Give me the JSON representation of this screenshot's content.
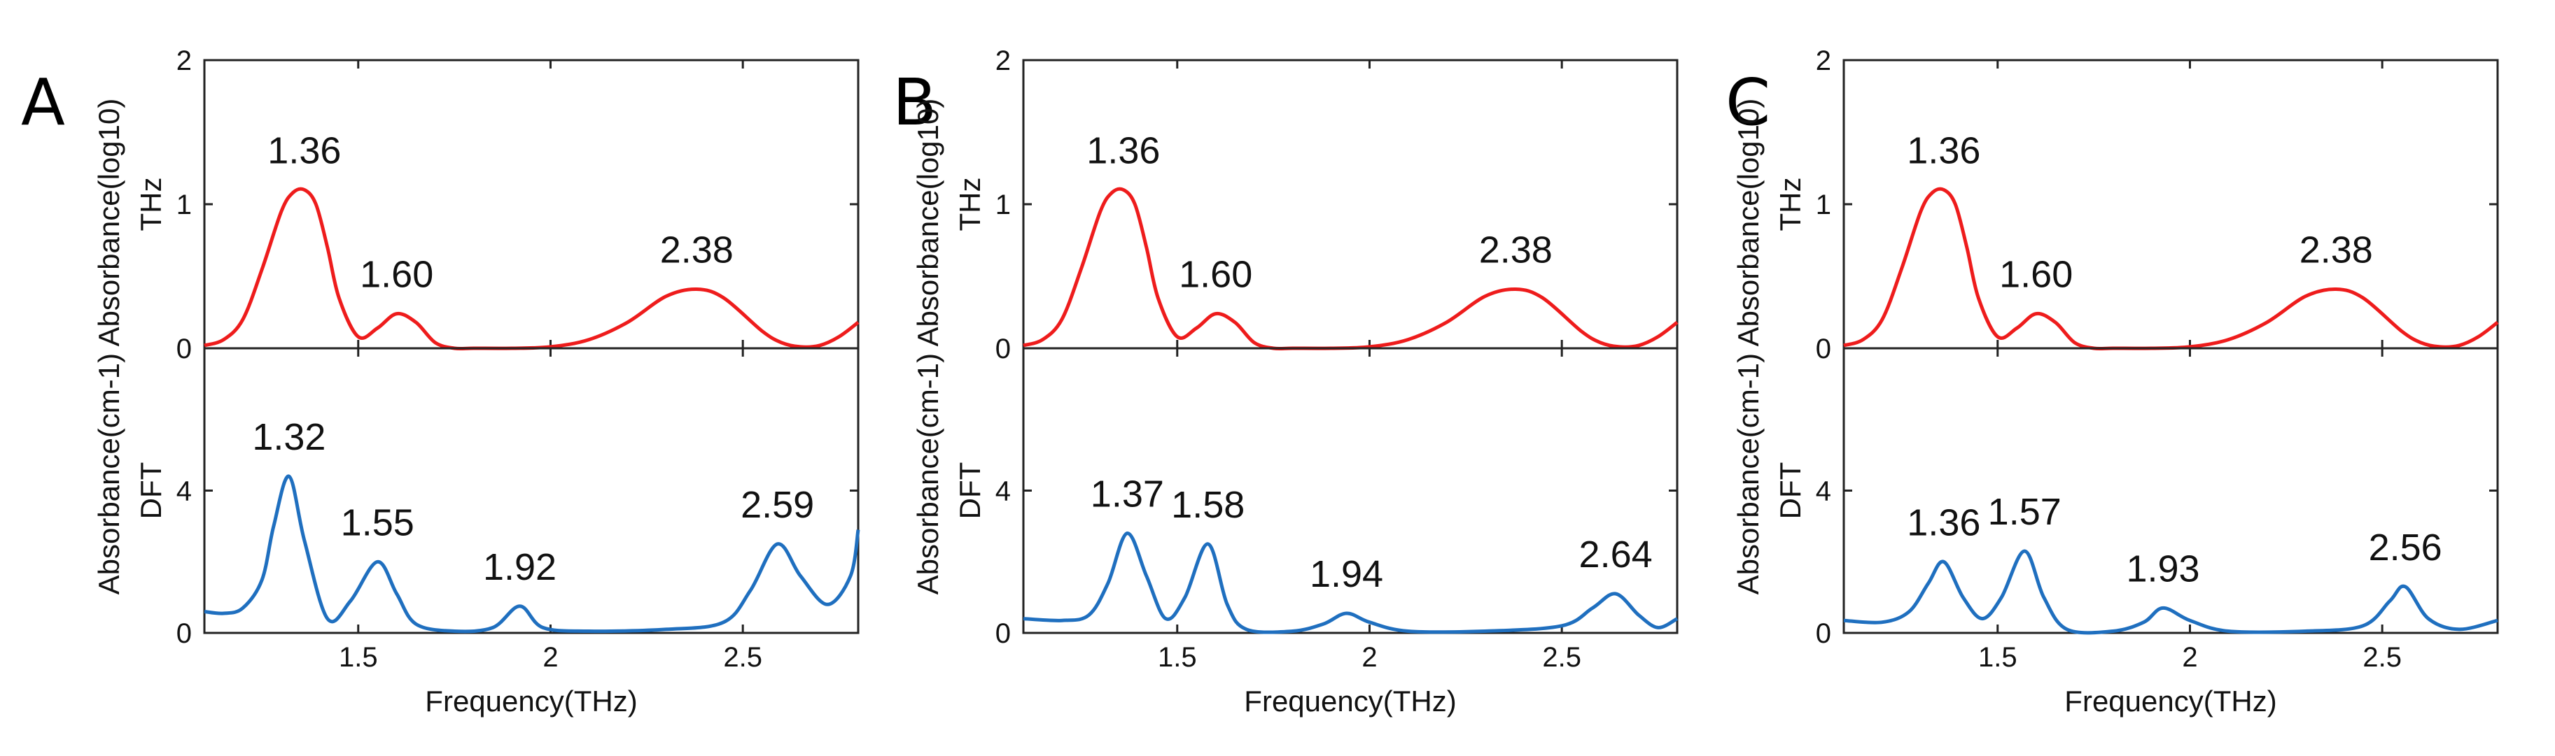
{
  "chart_data": [
    {
      "type": "line",
      "panel": "A",
      "xlabel": "Frequency(THz)",
      "xlim": [
        1.1,
        2.8
      ],
      "xticks": [
        1.5,
        2,
        2.5
      ],
      "subplots": [
        {
          "name": "THz",
          "ylabel": "THz",
          "ylabel2": "Absorbance(log10)",
          "ylim": [
            0,
            2
          ],
          "yticks": [
            0,
            1,
            2
          ],
          "color": "#ee1c1c",
          "peaks_label_values": [
            1.36,
            1.6,
            2.38
          ],
          "labels": [
            "1.36",
            "1.60",
            "2.38"
          ],
          "x": [
            1.1,
            1.15,
            1.2,
            1.25,
            1.3,
            1.33,
            1.36,
            1.39,
            1.42,
            1.45,
            1.5,
            1.55,
            1.6,
            1.65,
            1.7,
            1.75,
            1.8,
            1.9,
            2.0,
            2.1,
            2.2,
            2.3,
            2.38,
            2.45,
            2.55,
            2.6,
            2.65,
            2.7,
            2.75,
            2.8
          ],
          "y": [
            0.02,
            0.06,
            0.2,
            0.55,
            0.95,
            1.08,
            1.1,
            1.0,
            0.7,
            0.35,
            0.08,
            0.14,
            0.24,
            0.18,
            0.04,
            0.0,
            0.0,
            0.0,
            0.01,
            0.06,
            0.18,
            0.36,
            0.41,
            0.35,
            0.12,
            0.04,
            0.01,
            0.02,
            0.08,
            0.18
          ]
        },
        {
          "name": "DFT",
          "ylabel": "DFT",
          "ylabel2": "Absorbance(cm-1)",
          "ylim": [
            0,
            8
          ],
          "yticks": [
            0,
            4
          ],
          "color": "#1f6fbf",
          "labels": [
            "1.32",
            "1.55",
            "1.92",
            "2.59"
          ],
          "x": [
            1.1,
            1.15,
            1.2,
            1.25,
            1.28,
            1.32,
            1.36,
            1.42,
            1.48,
            1.55,
            1.6,
            1.65,
            1.75,
            1.85,
            1.92,
            1.98,
            2.1,
            2.3,
            2.45,
            2.52,
            2.59,
            2.65,
            2.72,
            2.78,
            2.8
          ],
          "y": [
            0.6,
            0.55,
            0.7,
            1.5,
            3.0,
            4.4,
            2.6,
            0.4,
            0.9,
            2.0,
            1.1,
            0.25,
            0.05,
            0.15,
            0.75,
            0.15,
            0.05,
            0.1,
            0.3,
            1.2,
            2.5,
            1.6,
            0.8,
            1.6,
            2.9
          ]
        }
      ]
    },
    {
      "type": "line",
      "panel": "B",
      "xlabel": "Frequency(THz)",
      "xlim": [
        1.1,
        2.8
      ],
      "xticks": [
        1.5,
        2,
        2.5
      ],
      "subplots": [
        {
          "name": "THz",
          "ylabel": "THz",
          "ylabel2": "Absorbance(log10)",
          "ylim": [
            0,
            2
          ],
          "yticks": [
            0,
            1,
            2
          ],
          "color": "#ee1c1c",
          "labels": [
            "1.36",
            "1.60",
            "2.38"
          ],
          "x": [
            1.1,
            1.15,
            1.2,
            1.25,
            1.3,
            1.33,
            1.36,
            1.39,
            1.42,
            1.45,
            1.5,
            1.55,
            1.6,
            1.65,
            1.7,
            1.75,
            1.8,
            1.9,
            2.0,
            2.1,
            2.2,
            2.3,
            2.38,
            2.45,
            2.55,
            2.6,
            2.65,
            2.7,
            2.75,
            2.8
          ],
          "y": [
            0.02,
            0.06,
            0.2,
            0.55,
            0.95,
            1.08,
            1.1,
            1.0,
            0.7,
            0.35,
            0.08,
            0.14,
            0.24,
            0.18,
            0.04,
            0.0,
            0.0,
            0.0,
            0.01,
            0.06,
            0.18,
            0.36,
            0.41,
            0.35,
            0.12,
            0.04,
            0.01,
            0.02,
            0.08,
            0.18
          ]
        },
        {
          "name": "DFT",
          "ylabel": "DFT",
          "ylabel2": "Absorbance(cm-1)",
          "ylim": [
            0,
            8
          ],
          "yticks": [
            0,
            4
          ],
          "color": "#1f6fbf",
          "labels": [
            "1.37",
            "1.58",
            "1.94",
            "2.64"
          ],
          "x": [
            1.1,
            1.2,
            1.27,
            1.32,
            1.37,
            1.42,
            1.47,
            1.52,
            1.58,
            1.63,
            1.68,
            1.8,
            1.88,
            1.94,
            2.0,
            2.1,
            2.3,
            2.5,
            2.58,
            2.64,
            2.7,
            2.75,
            2.8
          ],
          "y": [
            0.4,
            0.35,
            0.5,
            1.4,
            2.8,
            1.6,
            0.4,
            1.0,
            2.5,
            0.8,
            0.1,
            0.05,
            0.25,
            0.55,
            0.3,
            0.05,
            0.05,
            0.2,
            0.7,
            1.1,
            0.5,
            0.15,
            0.4
          ]
        }
      ]
    },
    {
      "type": "line",
      "panel": "C",
      "xlabel": "Frequency(THz)",
      "xlim": [
        1.1,
        2.8
      ],
      "xticks": [
        1.5,
        2,
        2.5
      ],
      "subplots": [
        {
          "name": "THz",
          "ylabel": "THz",
          "ylabel2": "Absorbance(log10)",
          "ylim": [
            0,
            2
          ],
          "yticks": [
            0,
            1,
            2
          ],
          "color": "#ee1c1c",
          "labels": [
            "1.36",
            "1.60",
            "2.38"
          ],
          "x": [
            1.1,
            1.15,
            1.2,
            1.25,
            1.3,
            1.33,
            1.36,
            1.39,
            1.42,
            1.45,
            1.5,
            1.55,
            1.6,
            1.65,
            1.7,
            1.75,
            1.8,
            1.9,
            2.0,
            2.1,
            2.2,
            2.3,
            2.38,
            2.45,
            2.55,
            2.6,
            2.65,
            2.7,
            2.75,
            2.8
          ],
          "y": [
            0.02,
            0.06,
            0.2,
            0.55,
            0.95,
            1.08,
            1.1,
            1.0,
            0.7,
            0.35,
            0.08,
            0.14,
            0.24,
            0.18,
            0.04,
            0.0,
            0.0,
            0.0,
            0.01,
            0.06,
            0.18,
            0.36,
            0.41,
            0.35,
            0.12,
            0.04,
            0.01,
            0.02,
            0.08,
            0.18
          ]
        },
        {
          "name": "DFT",
          "ylabel": "DFT",
          "ylabel2": "Absorbance(cm-1)",
          "ylim": [
            0,
            8
          ],
          "yticks": [
            0,
            4
          ],
          "color": "#1f6fbf",
          "labels": [
            "1.36",
            "1.57",
            "1.93",
            "2.56"
          ],
          "x": [
            1.1,
            1.2,
            1.27,
            1.32,
            1.36,
            1.41,
            1.46,
            1.51,
            1.57,
            1.62,
            1.68,
            1.8,
            1.88,
            1.93,
            2.0,
            2.1,
            2.3,
            2.45,
            2.52,
            2.56,
            2.62,
            2.7,
            2.8
          ],
          "y": [
            0.35,
            0.3,
            0.6,
            1.4,
            2.0,
            1.0,
            0.4,
            1.0,
            2.3,
            1.0,
            0.1,
            0.05,
            0.3,
            0.7,
            0.35,
            0.05,
            0.05,
            0.2,
            0.9,
            1.3,
            0.4,
            0.1,
            0.35
          ]
        }
      ]
    }
  ]
}
